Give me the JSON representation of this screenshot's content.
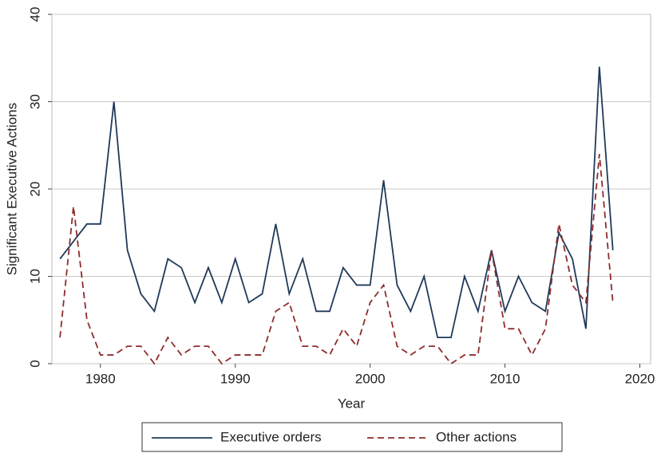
{
  "chart_data": {
    "type": "line",
    "x": [
      1977,
      1978,
      1979,
      1980,
      1981,
      1982,
      1983,
      1984,
      1985,
      1986,
      1987,
      1988,
      1989,
      1990,
      1991,
      1992,
      1993,
      1994,
      1995,
      1996,
      1997,
      1998,
      1999,
      2000,
      2001,
      2002,
      2003,
      2004,
      2005,
      2006,
      2007,
      2008,
      2009,
      2010,
      2011,
      2012,
      2013,
      2014,
      2015,
      2016,
      2017,
      2018
    ],
    "series": [
      {
        "name": "Executive orders",
        "color": "#1f3a5a",
        "dash": false,
        "values": [
          12,
          14,
          16,
          16,
          30,
          13,
          8,
          6,
          12,
          11,
          7,
          11,
          7,
          12,
          7,
          8,
          16,
          8,
          12,
          6,
          6,
          11,
          9,
          9,
          21,
          9,
          6,
          10,
          3,
          3,
          10,
          6,
          13,
          6,
          10,
          7,
          6,
          15,
          12,
          4,
          34,
          13
        ]
      },
      {
        "name": "Other actions",
        "color": "#8e2c2c",
        "dash": true,
        "values": [
          3,
          18,
          5,
          1,
          1,
          2,
          2,
          0,
          3,
          1,
          2,
          2,
          0,
          1,
          1,
          1,
          6,
          7,
          2,
          2,
          1,
          4,
          2,
          7,
          9,
          2,
          1,
          2,
          2,
          0,
          1,
          1,
          13,
          4,
          4,
          1,
          4,
          16,
          9,
          7,
          24,
          7
        ]
      }
    ],
    "x_label": "Year",
    "y_label": "Significant Executive Actions",
    "xlim": [
      1976.4,
      2020.8
    ],
    "xticks": [
      1980,
      1990,
      2000,
      2010,
      2020
    ],
    "ylim": [
      0,
      40
    ],
    "yticks": [
      0,
      10,
      20,
      30,
      40
    ],
    "grid": true,
    "legend": "bottom"
  }
}
